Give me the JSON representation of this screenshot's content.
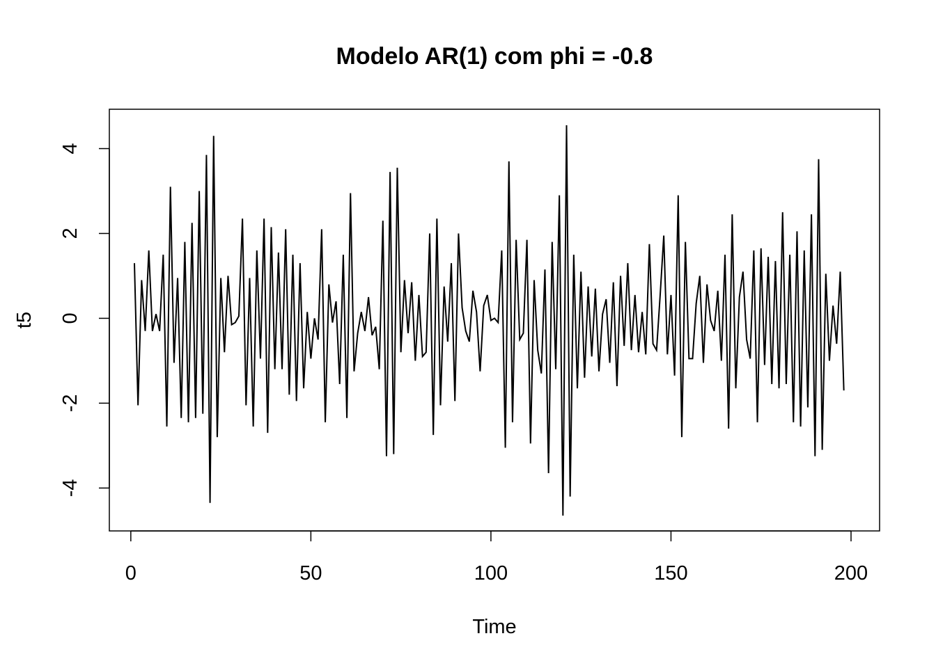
{
  "chart_data": {
    "type": "line",
    "title": "Modelo AR(1) com phi = -0.8",
    "xlabel": "Time",
    "ylabel": "t5",
    "xlim": [
      1,
      200
    ],
    "ylim": [
      -4.65,
      4.55
    ],
    "x_ticks": [
      0,
      50,
      100,
      150,
      200
    ],
    "y_ticks": [
      -4,
      -2,
      0,
      2,
      4
    ],
    "grid": false,
    "x_start": 1,
    "series": [
      {
        "color": "#000000",
        "values": [
          1.3,
          -2.05,
          0.9,
          -0.3,
          1.6,
          -0.3,
          0.1,
          -0.3,
          1.5,
          -2.55,
          3.1,
          -1.05,
          0.95,
          -2.35,
          1.8,
          -2.45,
          2.25,
          -2.35,
          3.0,
          -2.25,
          3.85,
          -4.35,
          4.3,
          -2.8,
          0.95,
          -0.8,
          1.0,
          -0.15,
          -0.1,
          0.05,
          2.35,
          -2.05,
          0.95,
          -2.55,
          1.6,
          -0.95,
          2.35,
          -2.7,
          2.15,
          -1.2,
          1.55,
          -1.2,
          2.1,
          -1.8,
          1.5,
          -1.95,
          1.3,
          -1.65,
          0.15,
          -0.95,
          0.0,
          -0.5,
          2.1,
          -2.45,
          0.8,
          -0.1,
          0.4,
          -1.55,
          1.5,
          -2.35,
          2.95,
          -1.25,
          -0.35,
          0.15,
          -0.3,
          0.5,
          -0.4,
          -0.2,
          -1.2,
          2.3,
          -3.25,
          3.45,
          -3.2,
          3.55,
          -0.8,
          0.9,
          -0.35,
          0.85,
          -1.0,
          0.55,
          -0.9,
          -0.8,
          2.0,
          -2.75,
          2.35,
          -2.05,
          0.75,
          -0.55,
          1.3,
          -1.95,
          2.0,
          0.25,
          -0.3,
          -0.55,
          0.65,
          0.15,
          -1.25,
          0.3,
          0.55,
          -0.05,
          0.0,
          -0.1,
          1.6,
          -3.05,
          3.7,
          -2.45,
          1.85,
          -0.5,
          -0.35,
          1.85,
          -2.95,
          0.9,
          -0.75,
          -1.3,
          1.15,
          -3.65,
          1.8,
          -1.2,
          2.9,
          -4.65,
          4.55,
          -4.2,
          1.5,
          -1.65,
          1.1,
          -1.4,
          0.75,
          -0.9,
          0.7,
          -1.25,
          0.1,
          0.45,
          -1.05,
          0.85,
          -1.6,
          1.0,
          -0.65,
          1.3,
          -0.75,
          0.55,
          -0.8,
          0.15,
          -0.85,
          1.75,
          -0.6,
          -0.75,
          0.55,
          1.95,
          -0.85,
          0.55,
          -1.35,
          2.9,
          -2.8,
          1.8,
          -0.95,
          -0.95,
          0.35,
          1.0,
          -1.05,
          0.8,
          -0.05,
          -0.3,
          0.65,
          -1.0,
          1.5,
          -2.6,
          2.45,
          -1.65,
          0.5,
          1.1,
          -0.5,
          -0.95,
          1.6,
          -2.45,
          1.65,
          -1.1,
          1.45,
          -1.55,
          1.35,
          -1.65,
          2.5,
          -1.55,
          1.5,
          -2.45,
          2.05,
          -2.55,
          1.6,
          -2.1,
          2.45,
          -3.25,
          3.75,
          -3.1,
          1.05,
          -1.0,
          0.3,
          -0.6,
          1.1,
          -1.7
        ]
      }
    ]
  }
}
